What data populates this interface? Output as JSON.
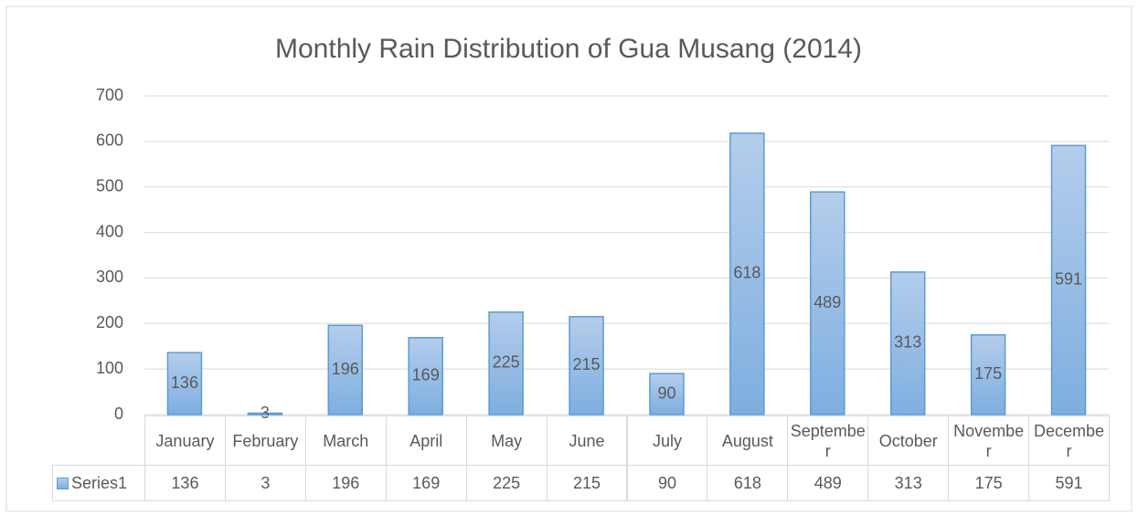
{
  "chart_data": {
    "type": "bar",
    "title": "Monthly Rain Distribution of Gua Musang (2014)",
    "categories": [
      "January",
      "February",
      "March",
      "April",
      "May",
      "June",
      "July",
      "August",
      "September",
      "October",
      "November",
      "December"
    ],
    "series": [
      {
        "name": "Series1",
        "color": "#5b9bd5",
        "values": [
          136,
          3,
          196,
          169,
          225,
          215,
          90,
          618,
          489,
          313,
          175,
          591
        ]
      }
    ],
    "ylim": [
      0,
      700
    ],
    "yticks": [
      0,
      100,
      200,
      300,
      400,
      500,
      600,
      700
    ],
    "grid": true,
    "data_table": true
  }
}
